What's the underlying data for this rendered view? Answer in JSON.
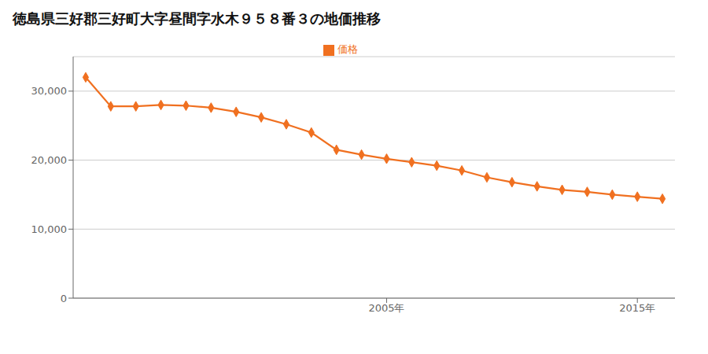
{
  "chart_data": {
    "type": "line",
    "title": "徳島県三好郡三好町大字昼間字水木９５８番３の地価推移",
    "x": [
      1993,
      1994,
      1995,
      1996,
      1997,
      1998,
      1999,
      2000,
      2001,
      2002,
      2003,
      2004,
      2005,
      2006,
      2007,
      2008,
      2009,
      2010,
      2011,
      2012,
      2013,
      2014,
      2015,
      2016
    ],
    "series": [
      {
        "name": "価格",
        "color": "#F07020",
        "marker": "diamond",
        "values": [
          32000,
          27800,
          27800,
          28000,
          27900,
          27600,
          27000,
          26200,
          25200,
          24000,
          21500,
          20800,
          20200,
          19700,
          19200,
          18500,
          17500,
          16800,
          16200,
          15700,
          15400,
          15000,
          14700,
          14400
        ]
      }
    ],
    "xlim": [
      1992.5,
      2016.5
    ],
    "xticks": [
      {
        "value": 2005,
        "label": "2005年"
      },
      {
        "value": 2015,
        "label": "2015年"
      }
    ],
    "ylim": [
      0,
      35000
    ],
    "yticks": [
      0,
      {
        "value": 10000,
        "label": "10,000"
      },
      {
        "value": 20000,
        "label": "20,000"
      },
      {
        "value": 30000,
        "label": "30,000"
      }
    ],
    "grid": true,
    "legend": "top"
  }
}
